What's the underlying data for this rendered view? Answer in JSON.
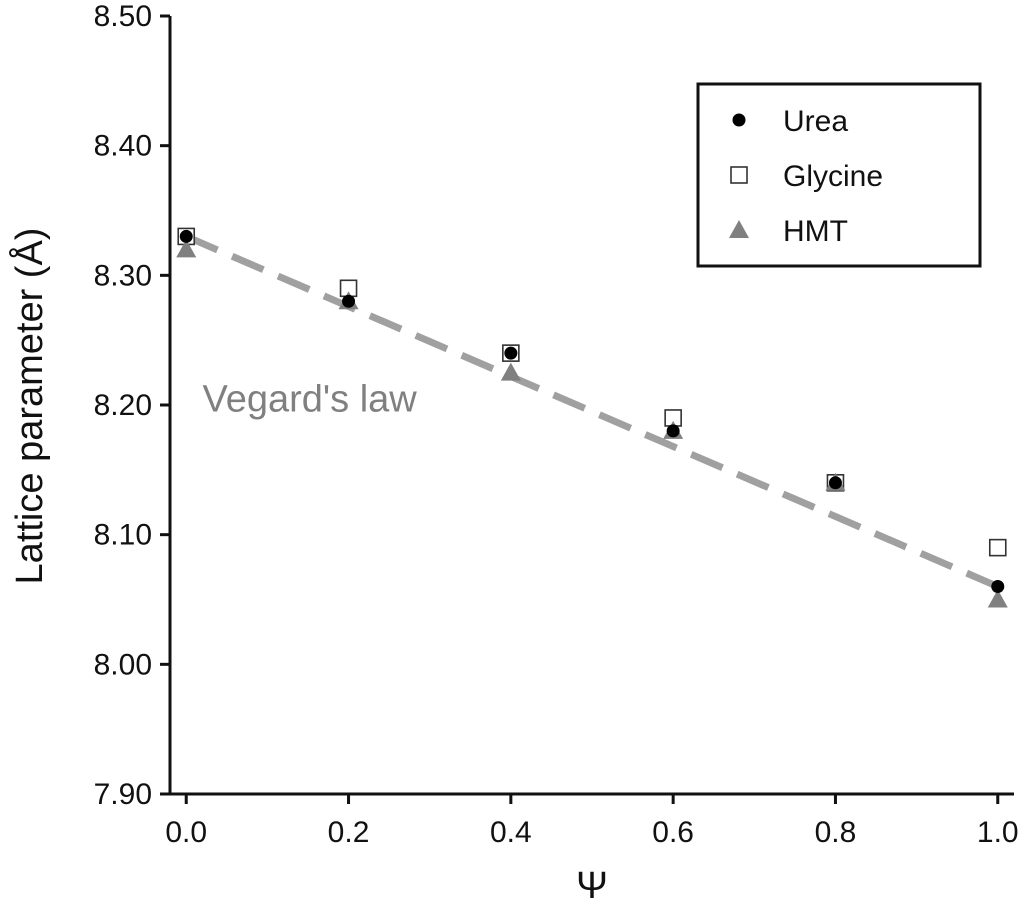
{
  "chart_data": {
    "type": "scatter",
    "xlabel": "Ψ",
    "ylabel": "Lattice parameter (Å)",
    "xlim": [
      -0.02,
      1.02
    ],
    "ylim": [
      7.9,
      8.5
    ],
    "x_ticks": [
      "0.0",
      "0.2",
      "0.4",
      "0.6",
      "0.8",
      "1.0"
    ],
    "x_tick_values": [
      0.0,
      0.2,
      0.4,
      0.6,
      0.8,
      1.0
    ],
    "y_ticks": [
      "7.90",
      "8.00",
      "8.10",
      "8.20",
      "8.30",
      "8.40",
      "8.50"
    ],
    "y_tick_values": [
      7.9,
      8.0,
      8.1,
      8.2,
      8.3,
      8.4,
      8.5
    ],
    "grid": false,
    "legend_position": "top-right",
    "series": [
      {
        "name": "Urea",
        "marker": "filled-circle",
        "color": "#000000",
        "x": [
          0.0,
          0.2,
          0.4,
          0.6,
          0.8,
          1.0
        ],
        "y": [
          8.33,
          8.28,
          8.24,
          8.18,
          8.14,
          8.06
        ]
      },
      {
        "name": "Glycine",
        "marker": "open-square",
        "color": "#333333",
        "x": [
          0.0,
          0.2,
          0.4,
          0.6,
          0.8,
          1.0
        ],
        "y": [
          8.33,
          8.29,
          8.24,
          8.19,
          8.14,
          8.09
        ]
      },
      {
        "name": "HMT",
        "marker": "filled-triangle",
        "color": "#808080",
        "x": [
          0.0,
          0.2,
          0.4,
          0.6,
          0.8,
          1.0
        ],
        "y": [
          8.32,
          8.28,
          8.225,
          8.18,
          8.14,
          8.05
        ]
      }
    ],
    "reference_line": {
      "label": "Vegard's law",
      "style": "dashed",
      "color": "#a0a0a0",
      "x": [
        0.0,
        1.0
      ],
      "y": [
        8.33,
        8.06
      ]
    },
    "annotations": [
      {
        "text": "Vegard's law",
        "x": 0.02,
        "y": 8.195
      }
    ]
  }
}
